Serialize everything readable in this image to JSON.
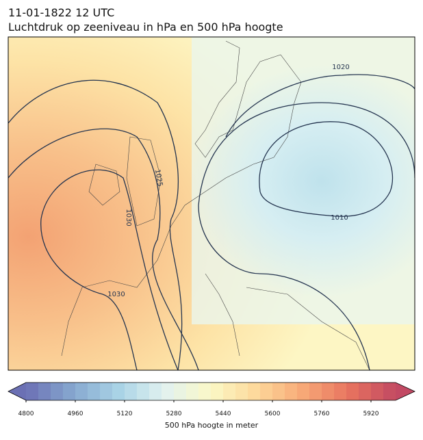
{
  "header": {
    "date": "11-01-1822 12 UTC",
    "title": "Luchtdruk op zeeniveau in hPa en 500 hPa hoogte"
  },
  "map": {
    "contour_labels": [
      1020,
      1010,
      1025,
      1030,
      1030
    ]
  },
  "colorbar": {
    "lim": [
      4800,
      6000
    ],
    "step": 40,
    "ticks": [
      4800,
      4960,
      5120,
      5280,
      5440,
      5600,
      5760,
      5920
    ],
    "label": "500 hPa hoogte in meter",
    "colors": [
      "#6b70b4",
      "#86a7cf",
      "#a9d3e6",
      "#e2f2f0",
      "#fbf8c6",
      "#fdd89a",
      "#f7a877",
      "#e8735f",
      "#c24963"
    ]
  }
}
